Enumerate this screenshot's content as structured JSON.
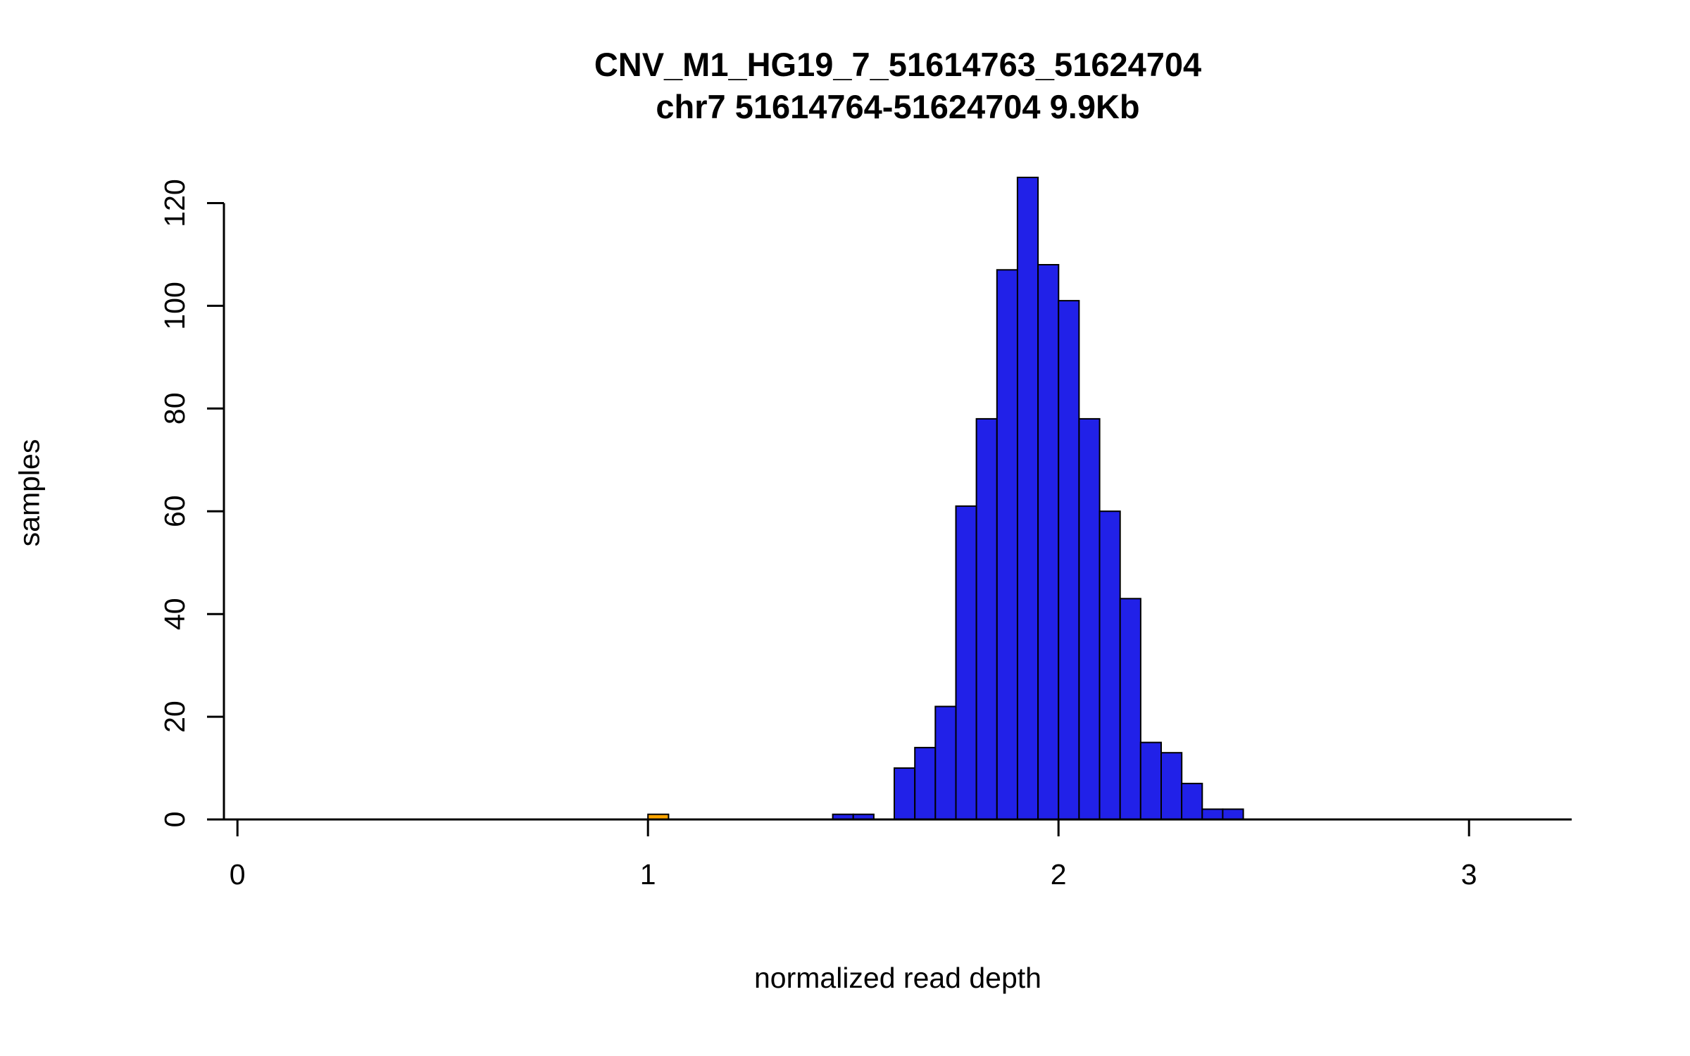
{
  "title": {
    "line1": "CNV_M1_HG19_7_51614763_51624704",
    "line2": "chr7 51614764-51624704 9.9Kb"
  },
  "chart_data": {
    "type": "bar",
    "subtype": "histogram",
    "title": "CNV_M1_HG19_7_51614763_51624704",
    "subtitle": "chr7 51614764-51624704 9.9Kb",
    "xlabel": "normalized read depth",
    "ylabel": "samples",
    "x_ticks": [
      0,
      1,
      2,
      3
    ],
    "y_ticks": [
      0,
      20,
      40,
      60,
      80,
      100,
      120
    ],
    "xlim": [
      -0.033,
      3.25
    ],
    "ylim": [
      0,
      125
    ],
    "bin_width": 0.05,
    "grid": false,
    "legend": "none",
    "colors": {
      "bar": "#2121E8",
      "highlight_bar": "#FFA500",
      "bar_border": "#000000",
      "axis": "#000000"
    },
    "bars": [
      {
        "x0": 1.0,
        "x1": 1.05,
        "count": 1,
        "highlight": true
      },
      {
        "x0": 1.45,
        "x1": 1.5,
        "count": 1,
        "highlight": false
      },
      {
        "x0": 1.5,
        "x1": 1.55,
        "count": 1,
        "highlight": false
      },
      {
        "x0": 1.6,
        "x1": 1.65,
        "count": 10,
        "highlight": false
      },
      {
        "x0": 1.65,
        "x1": 1.7,
        "count": 14,
        "highlight": false
      },
      {
        "x0": 1.7,
        "x1": 1.75,
        "count": 22,
        "highlight": false
      },
      {
        "x0": 1.75,
        "x1": 1.8,
        "count": 61,
        "highlight": false
      },
      {
        "x0": 1.8,
        "x1": 1.85,
        "count": 78,
        "highlight": false
      },
      {
        "x0": 1.85,
        "x1": 1.9,
        "count": 107,
        "highlight": false
      },
      {
        "x0": 1.9,
        "x1": 1.95,
        "count": 125,
        "highlight": false
      },
      {
        "x0": 1.95,
        "x1": 2.0,
        "count": 108,
        "highlight": false
      },
      {
        "x0": 2.0,
        "x1": 2.05,
        "count": 101,
        "highlight": false
      },
      {
        "x0": 2.05,
        "x1": 2.1,
        "count": 78,
        "highlight": false
      },
      {
        "x0": 2.1,
        "x1": 2.15,
        "count": 60,
        "highlight": false
      },
      {
        "x0": 2.15,
        "x1": 2.2,
        "count": 43,
        "highlight": false
      },
      {
        "x0": 2.2,
        "x1": 2.25,
        "count": 15,
        "highlight": false
      },
      {
        "x0": 2.25,
        "x1": 2.3,
        "count": 13,
        "highlight": false
      },
      {
        "x0": 2.3,
        "x1": 2.35,
        "count": 7,
        "highlight": false
      },
      {
        "x0": 2.35,
        "x1": 2.4,
        "count": 2,
        "highlight": false
      },
      {
        "x0": 2.4,
        "x1": 2.45,
        "count": 2,
        "highlight": false
      }
    ]
  }
}
